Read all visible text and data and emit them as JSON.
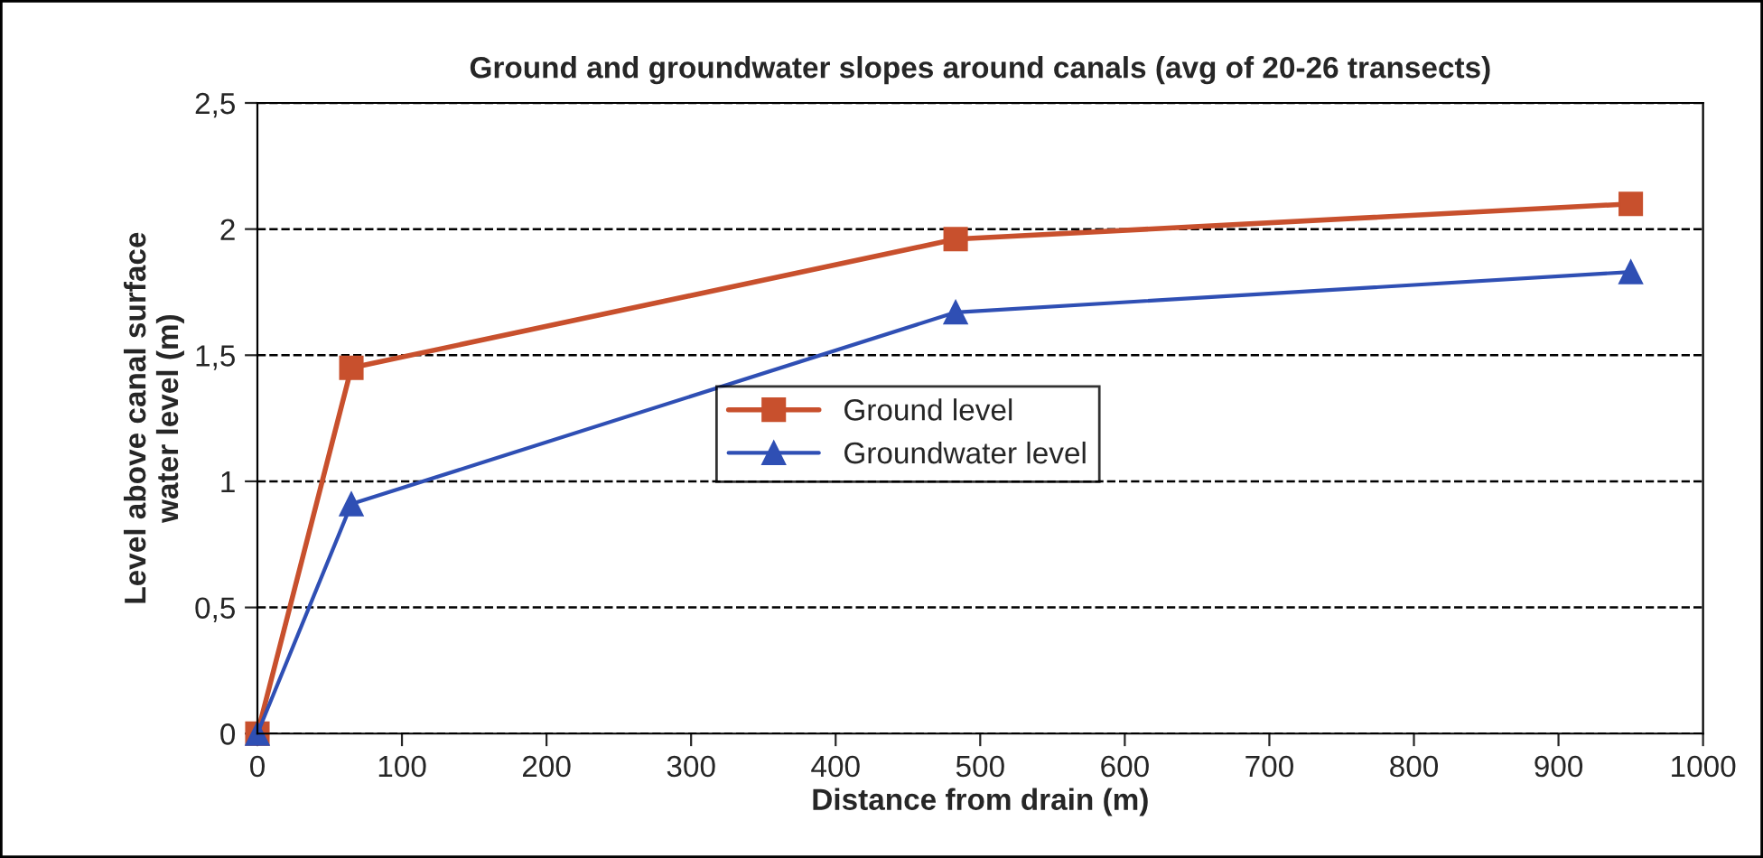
{
  "chart_data": {
    "type": "line",
    "title": "Ground and groundwater slopes around canals (avg of 20-26 transects)",
    "xlabel": "Distance from drain (m)",
    "ylabel": "Level above canal surface water level (m)",
    "series": [
      {
        "name": "Ground level",
        "color": "#c8502d",
        "marker": "square",
        "x": [
          0,
          65,
          483,
          950
        ],
        "values": [
          0,
          1.45,
          1.96,
          2.1
        ]
      },
      {
        "name": "Groundwater level",
        "color": "#2f4fb4",
        "marker": "triangle",
        "x": [
          0,
          65,
          483,
          950
        ],
        "values": [
          0,
          0.91,
          1.67,
          1.83
        ]
      }
    ],
    "xlim": [
      0,
      1000
    ],
    "xticks": [
      0,
      100,
      200,
      300,
      400,
      500,
      600,
      700,
      800,
      900,
      1000
    ],
    "ylim": [
      0,
      2.5
    ],
    "yticks": [
      0,
      {
        "value": 0.5,
        "label": "0,5"
      },
      1,
      {
        "value": 1.5,
        "label": "1,5"
      },
      2,
      {
        "value": 2.5,
        "label": "2,5"
      }
    ],
    "grid": "y",
    "legend": "center",
    "line_style": "solid"
  }
}
